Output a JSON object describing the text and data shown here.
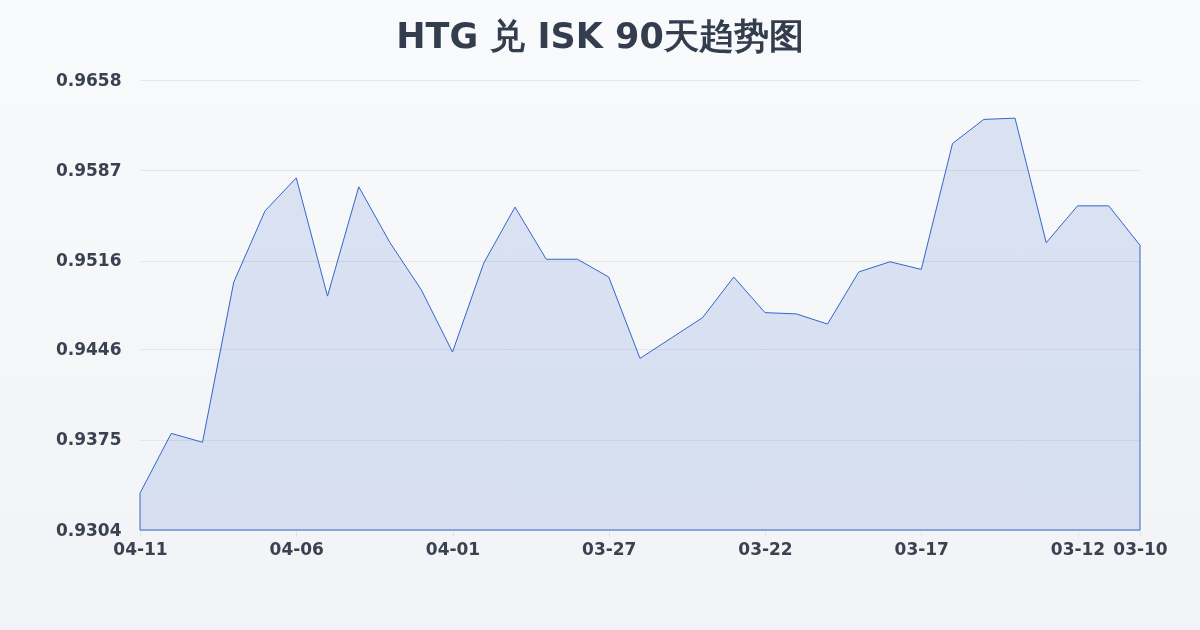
{
  "chart_data": {
    "type": "area",
    "title": "HTG 兑 ISK 90天趋势图",
    "categories": [
      "04-11",
      null,
      null,
      null,
      null,
      "04-06",
      null,
      null,
      null,
      null,
      "04-01",
      null,
      null,
      null,
      null,
      "03-27",
      null,
      null,
      null,
      null,
      "03-22",
      null,
      null,
      null,
      null,
      "03-17",
      null,
      null,
      null,
      null,
      "03-12",
      null,
      "03-10"
    ],
    "series": [
      {
        "color": "#3366cc",
        "values": [
          0.9333,
          0.938,
          0.9373,
          0.9499,
          0.9555,
          0.9581,
          0.9488,
          0.9574,
          0.953,
          0.9493,
          0.9444,
          0.9514,
          0.9558,
          0.9517,
          0.9517,
          0.9503,
          0.9439,
          0.9455,
          0.9471,
          0.9503,
          0.9475,
          0.9474,
          0.9466,
          0.9507,
          0.9515,
          0.9509,
          0.9608,
          0.9627,
          0.9628,
          0.953,
          0.9559,
          0.9559,
          0.9528
        ]
      }
    ],
    "ylim": [
      0.9304,
      0.9658
    ],
    "yticks": [
      0.9304,
      0.9375,
      0.9446,
      0.9516,
      0.9587,
      0.9658
    ],
    "grid": "y"
  }
}
